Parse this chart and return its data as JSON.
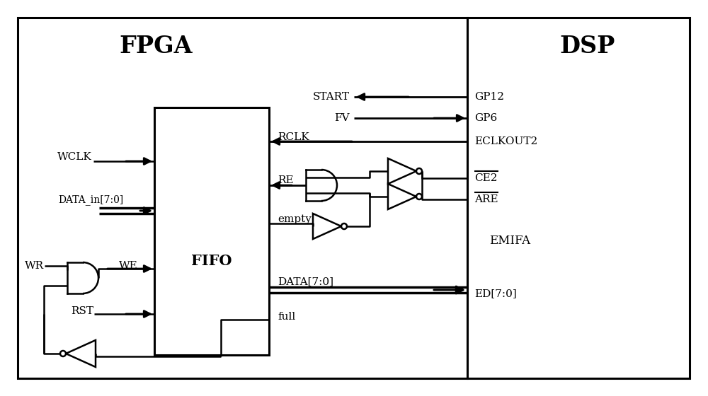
{
  "bg": "#ffffff",
  "fpga_label": "FPGA",
  "dsp_label": "DSP",
  "fifo_label": "FIFO",
  "emifa_label": "EMIFA",
  "eclkout2": "ECLKOUT2",
  "ce2": "CE2",
  "are": "ARE",
  "ed": "ED[7:0]",
  "gp12": "GP12",
  "gp6": "GP6",
  "start": "START",
  "fv": "FV",
  "rclk": "RCLK",
  "re": "RE",
  "empty": "empty",
  "data_bus": "DATA[7:0]",
  "full": "full",
  "wr": "WR",
  "we": "WE",
  "rst": "RST",
  "wclk": "WCLK",
  "data_in": "DATA_in[7:0]"
}
